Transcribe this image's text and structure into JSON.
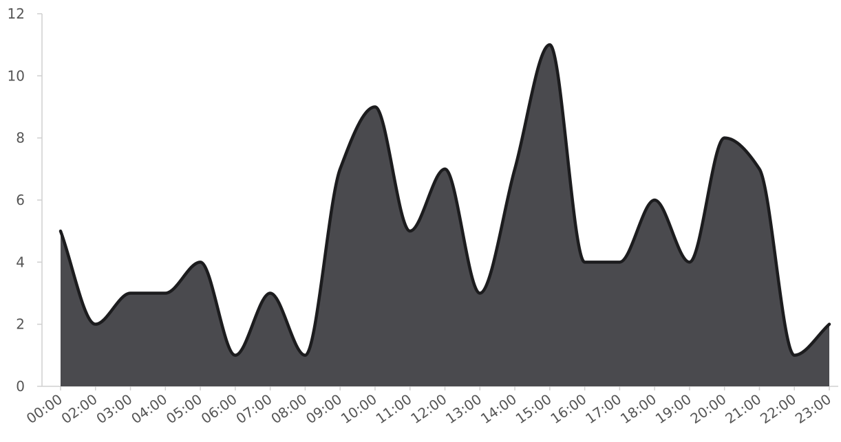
{
  "chart_data": {
    "type": "area",
    "title": "",
    "xlabel": "",
    "ylabel": "",
    "categories": [
      "00:00",
      "02:00",
      "03:00",
      "04:00",
      "05:00",
      "06:00",
      "07:00",
      "08:00",
      "09:00",
      "10:00",
      "11:00",
      "12:00",
      "13:00",
      "14:00",
      "15:00",
      "16:00",
      "17:00",
      "18:00",
      "19:00",
      "20:00",
      "21:00",
      "22:00",
      "23:00"
    ],
    "values": [
      5,
      2,
      3,
      3,
      4,
      1,
      3,
      1,
      7,
      9,
      5,
      7,
      3,
      7,
      11,
      4,
      4,
      6,
      4,
      8,
      7,
      1,
      2
    ],
    "ylim": [
      0,
      12
    ],
    "yticks": [
      0,
      2,
      4,
      6,
      8,
      10,
      12
    ],
    "grid": false,
    "legend": "none",
    "colors": {
      "area_fill": "#4a4a4e",
      "line": "#1c1c1e",
      "axis": "#cfcfcf",
      "tick_text": "#555555"
    }
  }
}
